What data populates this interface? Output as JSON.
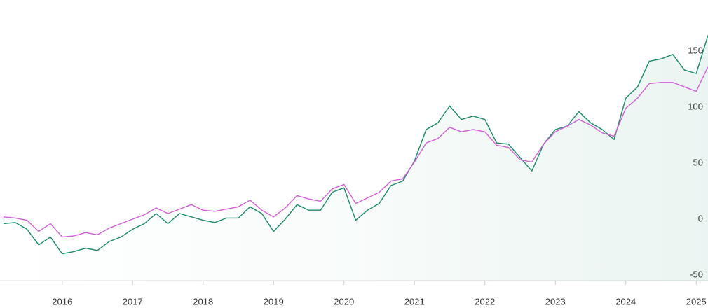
{
  "chart_data": {
    "type": "line",
    "categories": [
      null,
      null,
      null,
      null,
      null,
      "2016",
      null,
      null,
      null,
      null,
      null,
      "2017",
      null,
      null,
      null,
      null,
      null,
      "2018",
      null,
      null,
      null,
      null,
      null,
      "2019",
      null,
      null,
      null,
      null,
      null,
      "2020",
      null,
      null,
      null,
      null,
      null,
      "2021",
      null,
      null,
      null,
      null,
      null,
      "2022",
      null,
      null,
      null,
      null,
      null,
      "2023",
      null,
      null,
      null,
      null,
      null,
      "2024",
      null,
      null,
      null,
      null,
      null,
      "2025",
      null
    ],
    "series": [
      {
        "color": "#1a8a6a",
        "fill": true,
        "values": [
          -4,
          -3,
          -9,
          -23,
          -16,
          -31,
          -29,
          -26,
          -28,
          -20,
          -16,
          -9,
          -4,
          5,
          -4,
          5,
          2,
          -1,
          -3,
          1,
          1,
          11,
          5,
          -11,
          0,
          13,
          8,
          8,
          24,
          28,
          -1,
          8,
          14,
          30,
          34,
          52,
          80,
          86,
          101,
          89,
          92,
          89,
          68,
          67,
          55,
          43,
          67,
          80,
          83,
          96,
          86,
          80,
          71,
          108,
          118,
          141,
          143,
          147,
          133,
          130,
          164
        ]
      },
      {
        "color": "#d35fd8",
        "fill": false,
        "values": [
          2,
          1,
          -1,
          -11,
          -4,
          -16,
          -15,
          -12,
          -14,
          -8,
          -4,
          0,
          4,
          10,
          5,
          9,
          13,
          8,
          7,
          9,
          11,
          17,
          8,
          2,
          10,
          21,
          18,
          16,
          27,
          31,
          14,
          19,
          24,
          34,
          36,
          51,
          68,
          72,
          82,
          78,
          80,
          78,
          66,
          64,
          53,
          51,
          67,
          78,
          83,
          89,
          84,
          77,
          74,
          99,
          108,
          121,
          122,
          122,
          118,
          114,
          136
        ]
      }
    ],
    "ylim": [
      -55,
      195
    ],
    "yticks": [
      -50,
      0,
      50,
      100,
      150
    ]
  }
}
